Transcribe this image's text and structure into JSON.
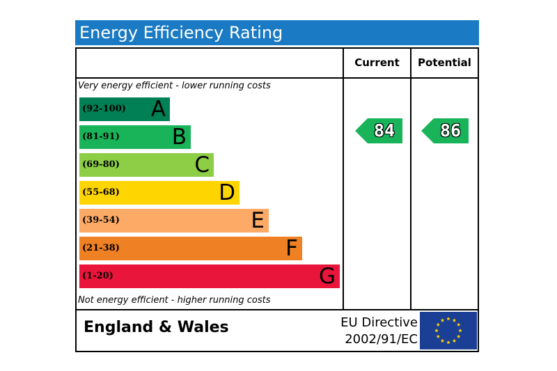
{
  "title": "Energy Efficiency Rating",
  "columns": {
    "current": "Current",
    "potential": "Potential"
  },
  "notes": {
    "top": "Very energy efficient - lower running costs",
    "bottom": "Not energy efficient - higher running costs"
  },
  "footer": {
    "region": "England & Wales",
    "directive_line1": "EU Directive",
    "directive_line2": "2002/91/EC"
  },
  "chart_data": {
    "type": "bar",
    "bands": [
      {
        "letter": "A",
        "range": "(92-100)",
        "color": "#008054"
      },
      {
        "letter": "B",
        "range": "(81-91)",
        "color": "#19b459"
      },
      {
        "letter": "C",
        "range": "(69-80)",
        "color": "#8dce46"
      },
      {
        "letter": "D",
        "range": "(55-68)",
        "color": "#ffd500"
      },
      {
        "letter": "E",
        "range": "(39-54)",
        "color": "#fcaa65"
      },
      {
        "letter": "F",
        "range": "(21-38)",
        "color": "#ef8023"
      },
      {
        "letter": "G",
        "range": "(1-20)",
        "color": "#e9153b"
      }
    ],
    "current": {
      "value": "84",
      "band": "B",
      "color": "#19b459"
    },
    "potential": {
      "value": "86",
      "band": "B",
      "color": "#19b459"
    }
  },
  "colors": {
    "header": "#1a7ac3",
    "eu_flag": "#1b3f94",
    "eu_stars": "#ffd500"
  }
}
